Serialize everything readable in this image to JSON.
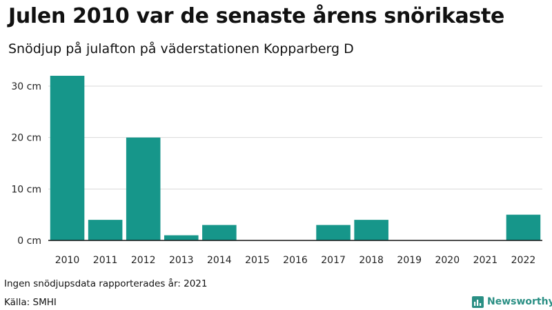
{
  "title": "Julen 2010 var de senaste årens snörikaste",
  "subtitle": "Snödjup på julafton på väderstationen Kopparberg D",
  "footnote": "Ingen snödjupsdata rapporterades år: 2021",
  "source": "Källa: SMHI",
  "brand": {
    "name": "Newsworthy",
    "icon": "newsworthy-logo-icon",
    "color": "#2a8f84"
  },
  "chart_data": {
    "type": "bar",
    "categories": [
      "2010",
      "2011",
      "2012",
      "2013",
      "2014",
      "2015",
      "2016",
      "2017",
      "2018",
      "2019",
      "2020",
      "2021",
      "2022"
    ],
    "values": [
      32,
      4,
      20,
      1,
      3,
      0,
      0,
      3,
      4,
      0,
      0,
      0,
      5
    ],
    "unit": "cm",
    "ylim": [
      0,
      32
    ],
    "yticks": [
      0,
      10,
      20,
      30
    ],
    "ytick_labels": [
      "0 cm",
      "10 cm",
      "20 cm",
      "30 cm"
    ],
    "bar_color": "#16968a",
    "gridlines": true,
    "legend": "none"
  }
}
